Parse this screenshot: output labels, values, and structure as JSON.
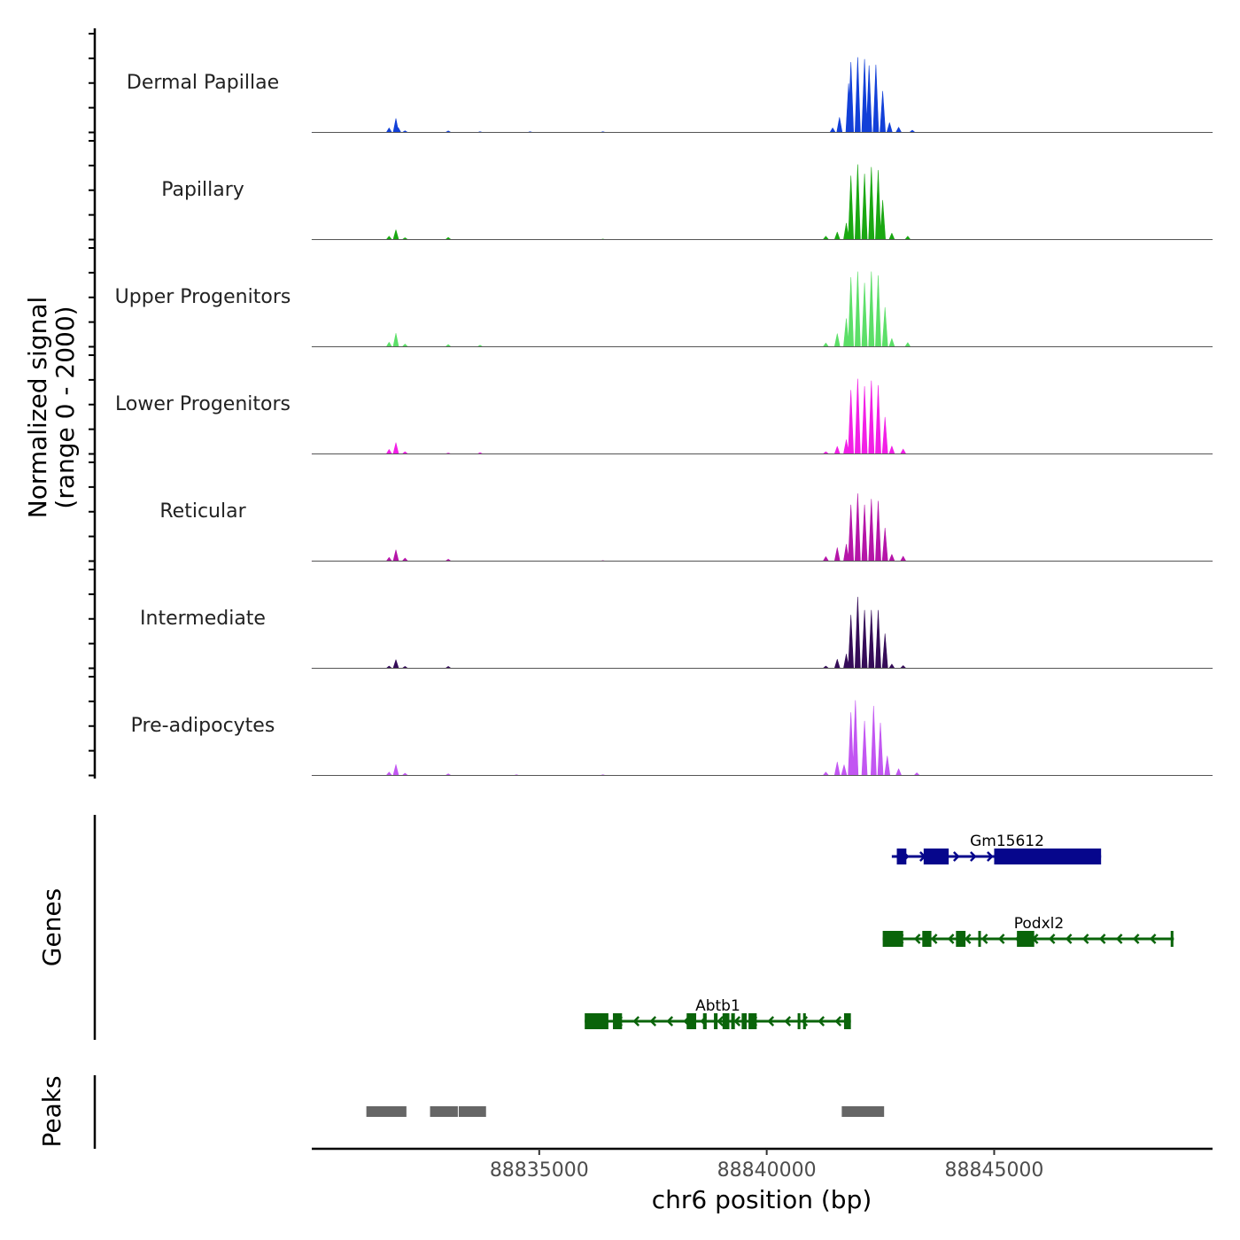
{
  "chart_data": {
    "type": "area",
    "title": "",
    "chromosome": "chr6",
    "xlabel": "chr6 position (bp)",
    "signal_ylabel": [
      "Normalized signal",
      "(range 0 - 2000)"
    ],
    "signal_range": [
      0,
      2000
    ],
    "xlim": [
      88830000,
      88849800
    ],
    "xticks": [
      88835000,
      88840000,
      88845000
    ],
    "xtick_labels": [
      "88835000",
      "88840000",
      "88845000"
    ],
    "tracks": [
      {
        "name": "Dermal Papillae",
        "color": "#1240d8",
        "positions": [
          88831700,
          88831850,
          88831900,
          88832050,
          88833000,
          88833700,
          88834800,
          88836400,
          88841450,
          88841600,
          88841800,
          88841850,
          88842000,
          88842150,
          88842250,
          88842400,
          88842550,
          88842700,
          88842900,
          88843200
        ],
        "values": [
          120,
          370,
          130,
          45,
          40,
          20,
          20,
          20,
          120,
          400,
          1300,
          1870,
          2000,
          1950,
          1780,
          1800,
          1100,
          260,
          140,
          60
        ]
      },
      {
        "name": "Papillary",
        "color": "#1aa812",
        "positions": [
          88831700,
          88831850,
          88832050,
          88833000,
          88836400,
          88841300,
          88841550,
          88841750,
          88841850,
          88842000,
          88842150,
          88842300,
          88842450,
          88842550,
          88842750,
          88843100
        ],
        "values": [
          90,
          260,
          50,
          60,
          15,
          90,
          200,
          440,
          1700,
          2000,
          1750,
          1930,
          1850,
          1050,
          170,
          90
        ]
      },
      {
        "name": "Upper Progenitors",
        "color": "#5cdf68",
        "positions": [
          88831700,
          88831850,
          88832050,
          88833000,
          88833700,
          88841300,
          88841550,
          88841750,
          88841850,
          88842000,
          88842150,
          88842300,
          88842450,
          88842600,
          88842750,
          88843100
        ],
        "values": [
          120,
          360,
          70,
          60,
          40,
          100,
          350,
          750,
          1850,
          2000,
          1700,
          2000,
          1900,
          1050,
          220,
          110
        ]
      },
      {
        "name": "Lower Progenitors",
        "color": "#f21fe6",
        "positions": [
          88831700,
          88831850,
          88832050,
          88833000,
          88833700,
          88841300,
          88841550,
          88841750,
          88841850,
          88842000,
          88842150,
          88842300,
          88842450,
          88842600,
          88842750,
          88843000
        ],
        "values": [
          120,
          300,
          60,
          25,
          35,
          60,
          200,
          380,
          1700,
          2000,
          1800,
          1950,
          1830,
          980,
          210,
          130
        ]
      },
      {
        "name": "Reticular",
        "color": "#b515a8",
        "positions": [
          88831700,
          88831850,
          88832050,
          88833000,
          88836400,
          88841300,
          88841550,
          88841750,
          88841850,
          88842000,
          88842150,
          88842300,
          88842450,
          88842600,
          88842750,
          88843000
        ],
        "values": [
          100,
          300,
          80,
          50,
          15,
          120,
          360,
          450,
          1500,
          1800,
          1500,
          1650,
          1600,
          880,
          180,
          130
        ]
      },
      {
        "name": "Intermediate",
        "color": "#350c58",
        "positions": [
          88831700,
          88831850,
          88832050,
          88833000,
          88841300,
          88841550,
          88841750,
          88841850,
          88842000,
          88842150,
          88842300,
          88842450,
          88842600,
          88842750,
          88843000
        ],
        "values": [
          60,
          230,
          50,
          50,
          60,
          240,
          380,
          1420,
          1900,
          1550,
          1550,
          1550,
          920,
          110,
          70
        ]
      },
      {
        "name": "Pre-adipocytes",
        "color": "#c256f2",
        "positions": [
          88831700,
          88831850,
          88832050,
          88833000,
          88834500,
          88836400,
          88841300,
          88841550,
          88841700,
          88841850,
          88841950,
          88842150,
          88842350,
          88842500,
          88842650,
          88842900,
          88843300
        ],
        "values": [
          90,
          290,
          60,
          45,
          20,
          20,
          90,
          360,
          280,
          1680,
          2000,
          1450,
          1850,
          1400,
          520,
          180,
          70
        ]
      }
    ],
    "genes": [
      {
        "name": "Gm15612",
        "strand": "+",
        "color": "#06068c",
        "start": 88842750,
        "end": 88847350,
        "exons": [
          [
            88842860,
            88843070
          ],
          [
            88843450,
            88844000
          ],
          [
            88845000,
            88847350
          ]
        ]
      },
      {
        "name": "Podxl2",
        "strand": "-",
        "color": "#0a640a",
        "start": 88842550,
        "end": 88848950,
        "exons": [
          [
            88842550,
            88843000
          ],
          [
            88843420,
            88843620
          ],
          [
            88844160,
            88844370
          ],
          [
            88844650,
            88844700
          ],
          [
            88845500,
            88845880
          ],
          [
            88848880,
            88848940
          ]
        ]
      },
      {
        "name": "Abtb1",
        "strand": "-",
        "color": "#0a640a",
        "start": 88836000,
        "end": 88841850,
        "exons": [
          [
            88836000,
            88836520
          ],
          [
            88836620,
            88836820
          ],
          [
            88838240,
            88838450
          ],
          [
            88838600,
            88838680
          ],
          [
            88838840,
            88838920
          ],
          [
            88839030,
            88839180
          ],
          [
            88839220,
            88839300
          ],
          [
            88839450,
            88839560
          ],
          [
            88839600,
            88839780
          ],
          [
            88840680,
            88840740
          ],
          [
            88840800,
            88840860
          ],
          [
            88841700,
            88841850
          ]
        ]
      }
    ],
    "peaks": [
      {
        "start": 88831200,
        "end": 88832100
      },
      {
        "start": 88832600,
        "end": 88833230
      },
      {
        "start": 88833230,
        "end": 88833850
      },
      {
        "start": 88841650,
        "end": 88842600
      }
    ],
    "panel_labels": {
      "genes": "Genes",
      "peaks": "Peaks"
    }
  }
}
